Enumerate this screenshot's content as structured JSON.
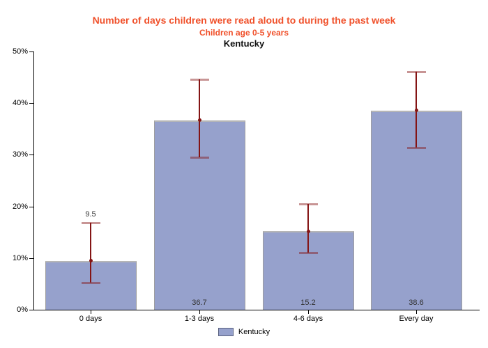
{
  "header": {
    "title": "Number of days children were read aloud to during the past week",
    "subtitle": "Children age 0-5 years",
    "region": "Kentucky"
  },
  "legend": {
    "label": "Kentucky"
  },
  "colors": {
    "title_text": "#F0502A",
    "bar_fill": "#96A1CC",
    "bar_border": "#9E9E9E",
    "bar_border_top": "#B6B6B6",
    "error_line": "#841414",
    "error_cap": "rgba(132,20,20,0.45)",
    "legend_swatch_border": "#5A6280"
  },
  "chart_data": {
    "type": "bar",
    "title": "Number of days children were read aloud to during the past week",
    "subtitle": "Children age 0-5 years",
    "region_label": "Kentucky",
    "categories": [
      "0 days",
      "1-3 days",
      "4-6 days",
      "Every day"
    ],
    "series": [
      {
        "name": "Kentucky",
        "values": [
          9.5,
          36.7,
          15.2,
          38.6
        ],
        "error_low": [
          5.2,
          29.5,
          11.0,
          31.4
        ],
        "error_high": [
          16.8,
          44.6,
          20.5,
          46.1
        ]
      }
    ],
    "value_labels": [
      "9.5",
      "36.7",
      "15.2",
      "38.6"
    ],
    "value_label_placement": [
      "above-error",
      "inside-bottom",
      "inside-bottom",
      "inside-bottom"
    ],
    "ylim": [
      0,
      50
    ],
    "ytick_values": [
      0,
      10,
      20,
      30,
      40,
      50
    ],
    "ytick_labels": [
      "0%",
      "10%",
      "20%",
      "30%",
      "40%",
      "50%"
    ],
    "grid": "off",
    "legend_position": "bottom-center",
    "error_bars": "on"
  }
}
